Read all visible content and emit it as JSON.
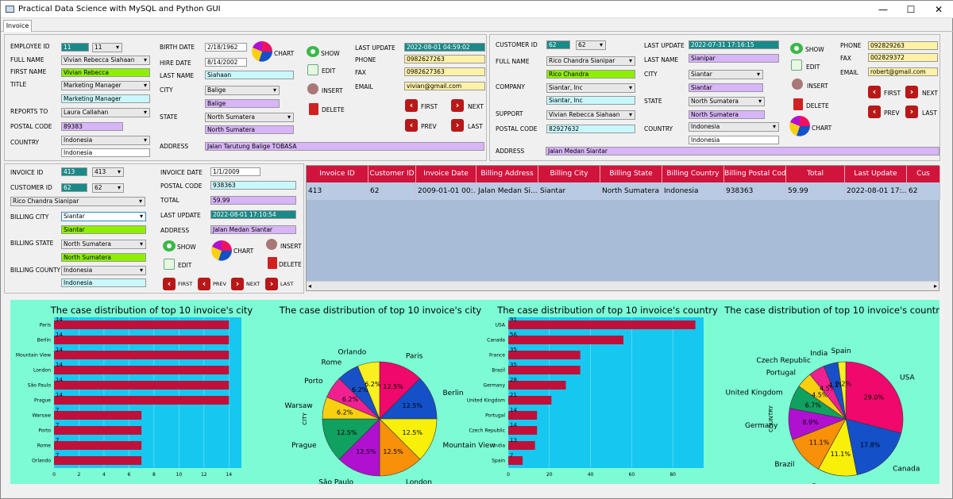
{
  "window": {
    "title": "Practical Data Science with MySQL and Python GUI",
    "minimize": "—",
    "maximize": "☐",
    "close": "✕"
  },
  "tabs": [
    "Invoice"
  ],
  "employee": {
    "labels": {
      "id": "EMPLOYEE ID",
      "full_name": "FULL NAME",
      "first_name": "FIRST NAME",
      "title": "TITLE",
      "reports_to": "REPORTS TO",
      "postal_code": "POSTAL CODE",
      "country": "COUNTRY",
      "birth_date": "BIRTH DATE",
      "hire_date": "HIRE DATE",
      "last_name": "LAST NAME",
      "city": "CITY",
      "state": "STATE",
      "address": "ADDRESS",
      "last_update": "LAST UPDATE",
      "phone": "PHONE",
      "fax": "FAX",
      "email": "EMAIL"
    },
    "id": "11",
    "id_select": "11",
    "full_name": "Vivian Rebecca Siahaan",
    "first_name": "Vivian Rebecca",
    "title_select": "Marketing Manager",
    "title": "Marketing Manager",
    "reports_to": "Laura Callahan",
    "postal_code": "89383",
    "country_select": "Indonesia",
    "country": "Indonesia",
    "birth_date": "2/18/1962",
    "hire_date": "8/14/2002",
    "last_name": "Siahaan",
    "city_select": "Balige",
    "city": "Balige",
    "state_select": "North Sumatera",
    "state": "North Sumatera",
    "address": "Jalan Tarutung Balige TOBASA",
    "last_update": "2022-08-01 04:59:02",
    "phone": "0982627263",
    "fax": "0982627363",
    "email": "vivian@gmail.com"
  },
  "customer": {
    "labels": {
      "id": "CUSTOMER ID",
      "full_name": "FULL NAME",
      "company": "COMPANY",
      "support": "SUPPORT",
      "postal_code": "POSTAL CODE",
      "address": "ADDRESS",
      "last_update": "LAST UPDATE",
      "last_name": "LAST NAME",
      "city": "CITY",
      "state": "STATE",
      "country": "COUNTRY",
      "phone": "PHONE",
      "fax": "FAX",
      "email": "EMAIL"
    },
    "id": "62",
    "id_select": "62",
    "full_name": "Rico Chandra Sianipar",
    "first_name": "Rico Chandra",
    "company_select": "Siantar, Inc",
    "company": "Siantar, Inc",
    "support": "Vivian Rebecca Siahaan",
    "postal_code": "82927632",
    "address": "Jalan Medan Siantar",
    "last_update": "2022-07-31 17:16:15",
    "last_name": "Sianipar",
    "city_select": "Siantar",
    "city": "Siantar",
    "state_select": "North Sumatera",
    "state": "North Sumatera",
    "country_select": "Indonesia",
    "country": "Indonesia",
    "phone": "092829263",
    "fax": "002829372",
    "email": "robert@gmail.com"
  },
  "invoice": {
    "labels": {
      "id": "INVOICE ID",
      "customer_id": "CUSTOMER ID",
      "billing_city": "BILLING CITY",
      "billing_state": "BILLING STATE",
      "billing_country": "BILLING COUNTY",
      "invoice_date": "INVOICE DATE",
      "postal_code": "POSTAL CODE",
      "total": "TOTAL",
      "last_update": "LAST UPDATE",
      "address": "ADDRESS"
    },
    "id": "413",
    "id_select": "413",
    "customer_id": "62",
    "customer_id_select": "62",
    "customer_name": "Rico Chandra Sianipar",
    "billing_city_select": "Siantar",
    "billing_city": "Siantar",
    "billing_state_select": "North Sumatera",
    "billing_state": "North Sumatera",
    "billing_country_select": "Indonesia",
    "billing_country": "Indonesia",
    "invoice_date": "1/1/2009",
    "postal_code": "938363",
    "total": "59.99",
    "last_update": "2022-08-01 17:10:54",
    "address": "Jalan Medan Siantar"
  },
  "buttons": {
    "show": "SHOW",
    "edit": "EDIT",
    "insert": "INSERT",
    "delete": "DELETE",
    "chart": "CHART",
    "first": "FIRST",
    "next": "NEXT",
    "prev": "PREV",
    "last": "LAST"
  },
  "table": {
    "columns": [
      "Invoice ID",
      "Customer ID",
      "Invoice Date",
      "Billing Address",
      "Billing City",
      "Billing State",
      "Billing Country",
      "Billing Postal Code",
      "Total",
      "Last Update",
      "Cus"
    ],
    "rows": [
      [
        "413",
        "62",
        "2009-01-01 00:...",
        "Jalan Medan Si...",
        "Siantar",
        "North Sumatera",
        "Indonesia",
        "938363",
        "59.99",
        "2022-08-01 17:...",
        "62"
      ]
    ]
  },
  "colors": {
    "bar": "#c0103a",
    "plot_bg": "#16c8f0",
    "chart_bg": "#7dfbd4",
    "header": "#d0143c"
  },
  "chart_data": [
    {
      "type": "bar",
      "orientation": "horizontal",
      "title": "The case distribution of top 10 invoice's city",
      "categories": [
        "Paris",
        "Berlin",
        "Mountain View",
        "London",
        "São Paulo",
        "Prague",
        "Warsaw",
        "Porto",
        "Rome",
        "Orlando"
      ],
      "values": [
        14,
        14,
        14,
        14,
        14,
        14,
        7,
        7,
        7,
        7
      ],
      "xlim": [
        0,
        15
      ],
      "xticks": [
        "0",
        "2",
        "4",
        "6",
        "8",
        "10",
        "12",
        "14"
      ]
    },
    {
      "type": "pie",
      "title": "The case distribution of top 10 invoice's city",
      "ylabel": "CITY",
      "slices": [
        {
          "label": "Paris",
          "value": 12.5,
          "pct": "12.5%",
          "color": "#f0086c"
        },
        {
          "label": "Berlin",
          "value": 12.5,
          "pct": "12.5%",
          "color": "#1450c8"
        },
        {
          "label": "Mountain View",
          "value": 12.5,
          "pct": "12.5%",
          "color": "#f8f008"
        },
        {
          "label": "London",
          "value": 12.5,
          "pct": "12.5%",
          "color": "#f89008"
        },
        {
          "label": "São Paulo",
          "value": 12.5,
          "pct": "12.5%",
          "color": "#b010d0"
        },
        {
          "label": "Prague",
          "value": 12.5,
          "pct": "12.5%",
          "color": "#10a060"
        },
        {
          "label": "Warsaw",
          "value": 6.25,
          "pct": "6.2%",
          "color": "#f8d010"
        },
        {
          "label": "Porto",
          "value": 6.25,
          "pct": "6.2%",
          "color": "#f02090"
        },
        {
          "label": "Rome",
          "value": 6.25,
          "pct": "6.2%",
          "color": "#1850c8"
        },
        {
          "label": "Orlando",
          "value": 6.25,
          "pct": "6.2%",
          "color": "#f8f020"
        }
      ]
    },
    {
      "type": "bar",
      "orientation": "horizontal",
      "title": "The case distribution of top 10 invoice's country",
      "categories": [
        "USA",
        "Canada",
        "France",
        "Brazil",
        "Germany",
        "United Kingdom",
        "Portugal",
        "Czech Republic",
        "India",
        "Spain"
      ],
      "values": [
        91,
        56,
        35,
        35,
        28,
        21,
        14,
        14,
        13,
        7
      ],
      "xlim": [
        0,
        95
      ],
      "xticks": [
        "0",
        "20",
        "40",
        "60",
        "80"
      ],
      "bar_labels": [
        "91",
        "56",
        "35",
        "35",
        "28",
        "21",
        "14",
        "14",
        "13",
        "7"
      ]
    },
    {
      "type": "pie",
      "title": "The case distribution of top 10 invoice's country",
      "ylabel": "COUNTRY",
      "slices": [
        {
          "label": "USA",
          "value": 29.0,
          "pct": "29.0%",
          "color": "#f0086c"
        },
        {
          "label": "Canada",
          "value": 17.8,
          "pct": "17.8%",
          "color": "#1450c8"
        },
        {
          "label": "France",
          "value": 11.1,
          "pct": "11.1%",
          "color": "#f8f008"
        },
        {
          "label": "Brazil",
          "value": 11.1,
          "pct": "11.1%",
          "color": "#f89008"
        },
        {
          "label": "Germany",
          "value": 8.9,
          "pct": "8.9%",
          "color": "#b010d0"
        },
        {
          "label": "United Kingdom",
          "value": 6.7,
          "pct": "6.7%",
          "color": "#10a060"
        },
        {
          "label": "Portugal",
          "value": 4.5,
          "pct": "4.5%",
          "color": "#f8d010"
        },
        {
          "label": "Czech Republic",
          "value": 4.5,
          "pct": "4.5%",
          "color": "#f02090"
        },
        {
          "label": "India",
          "value": 4.1,
          "pct": "4.1%",
          "color": "#1850c8"
        },
        {
          "label": "Spain",
          "value": 2.2,
          "pct": "2.2%",
          "color": "#f8f020"
        }
      ]
    }
  ]
}
